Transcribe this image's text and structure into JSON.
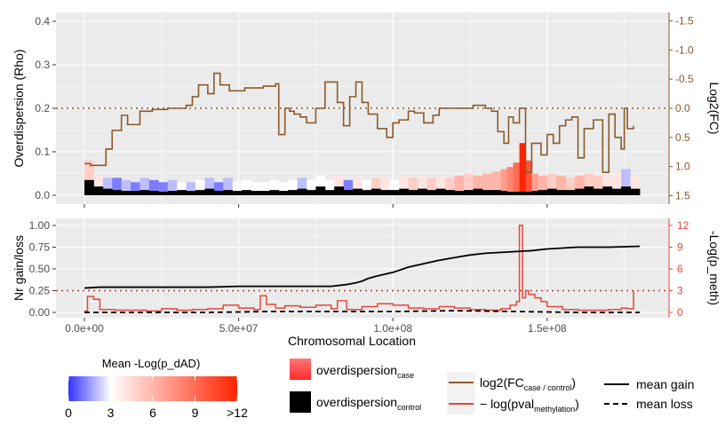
{
  "colors": {
    "panel_bg": "#ebebeb",
    "grid_major": "#ffffff",
    "logfc_line": "#8b5a2b",
    "pval_line": "#e8473a",
    "overdisp_control": "#000000",
    "gain_loss": "#000000",
    "threshold_dotted": "#c0392b",
    "gradient_low": "#3333ff",
    "gradient_mid": "#ffffff",
    "gradient_high": "#ff2200"
  },
  "chart_data": [
    {
      "type": "area",
      "panel": "top",
      "xlabel": "",
      "ylabel": "Overdispersion (Rho)",
      "ylabel_right": "Log2(FC)",
      "xlim": [
        0,
        180000000
      ],
      "ylim": [
        -0.01,
        0.42
      ],
      "ylim_right": [
        -1.6,
        1.6
      ],
      "y_ticks": [
        "0.0",
        "0.1",
        "0.2",
        "0.3",
        "0.4"
      ],
      "y_ticks_right": [
        "-1.5",
        "-1.0",
        "-0.5",
        "0.0",
        "0.5",
        "1.0",
        "1.5"
      ],
      "threshold_right": 0.0,
      "grid": true,
      "series": [
        {
          "name": "log2(FC case/control)",
          "kind": "step-line",
          "axis": "right",
          "x": [
            0,
            2000000,
            7000000,
            9000000,
            12000000,
            14000000,
            18000000,
            22000000,
            27000000,
            33000000,
            35000000,
            37000000,
            40000000,
            42000000,
            44000000,
            47000000,
            52000000,
            58000000,
            62000000,
            63000000,
            65000000,
            66500000,
            68000000,
            70000000,
            72000000,
            75000000,
            78000000,
            82000000,
            84000000,
            86000000,
            88000000,
            90000000,
            92000000,
            95000000,
            98000000,
            100000000,
            102000000,
            105000000,
            107000000,
            110000000,
            113000000,
            115000000,
            118000000,
            122000000,
            126000000,
            130000000,
            132000000,
            134000000,
            136000000,
            137500000,
            139000000,
            141000000,
            143000000,
            145000000,
            148000000,
            150000000,
            152000000,
            154000000,
            156000000,
            158000000,
            160000000,
            162000000,
            165000000,
            168000000,
            170000000,
            172000000,
            174000000,
            175000000,
            176000000,
            178000000
          ],
          "values": [
            0.95,
            0.98,
            0.7,
            0.38,
            0.12,
            0.28,
            0.05,
            0.02,
            0.0,
            -0.05,
            -0.2,
            -0.4,
            -0.25,
            -0.6,
            -0.4,
            -0.3,
            -0.35,
            -0.38,
            -0.42,
            0.45,
            0.0,
            0.05,
            0.1,
            0.15,
            0.25,
            0.0,
            -0.45,
            -0.1,
            0.3,
            -0.2,
            -0.45,
            -0.1,
            0.1,
            0.35,
            0.5,
            0.25,
            0.2,
            0.05,
            0.08,
            0.25,
            0.12,
            0.0,
            0.0,
            0.0,
            -0.05,
            0.0,
            0.05,
            0.4,
            0.6,
            0.15,
            0.25,
            0.0,
            1.1,
            0.6,
            0.8,
            0.45,
            0.6,
            0.3,
            0.2,
            0.15,
            0.85,
            0.35,
            0.2,
            1.1,
            0.1,
            0.5,
            0.7,
            0.0,
            0.35,
            0.3
          ]
        },
        {
          "name": "overdispersion case",
          "kind": "bars-colored",
          "axis": "left",
          "color_by": "Mean -Log(p_dAD)",
          "x": [
            0,
            3000000,
            6000000,
            9000000,
            12000000,
            15000000,
            18000000,
            21000000,
            24000000,
            27000000,
            30000000,
            33000000,
            36000000,
            39000000,
            42000000,
            45000000,
            48000000,
            51000000,
            54000000,
            57000000,
            60000000,
            63000000,
            66000000,
            69000000,
            72000000,
            75000000,
            78000000,
            81000000,
            84000000,
            87000000,
            90000000,
            93000000,
            96000000,
            99000000,
            102000000,
            105000000,
            108000000,
            111000000,
            114000000,
            117000000,
            120000000,
            123000000,
            126000000,
            129000000,
            132000000,
            135000000,
            137000000,
            139000000,
            141000000,
            143000000,
            145000000,
            147000000,
            150000000,
            153000000,
            156000000,
            159000000,
            162000000,
            165000000,
            168000000,
            171000000,
            174000000,
            177000000
          ],
          "values": [
            0.08,
            0.045,
            0.04,
            0.04,
            0.035,
            0.03,
            0.04,
            0.035,
            0.03,
            0.035,
            0.03,
            0.03,
            0.035,
            0.04,
            0.03,
            0.04,
            0.03,
            0.035,
            0.03,
            0.03,
            0.035,
            0.03,
            0.035,
            0.04,
            0.035,
            0.045,
            0.035,
            0.045,
            0.035,
            0.04,
            0.035,
            0.04,
            0.04,
            0.035,
            0.045,
            0.04,
            0.045,
            0.04,
            0.045,
            0.04,
            0.045,
            0.05,
            0.045,
            0.05,
            0.055,
            0.06,
            0.065,
            0.075,
            0.12,
            0.08,
            0.05,
            0.045,
            0.05,
            0.045,
            0.04,
            0.045,
            0.05,
            0.045,
            0.04,
            0.05,
            0.06,
            0.045
          ],
          "intensity": [
            5,
            4,
            2,
            1,
            2,
            1,
            2,
            1,
            1,
            2,
            3,
            2,
            3,
            2,
            1,
            2,
            3,
            3,
            3,
            3,
            3,
            3,
            3,
            2,
            3,
            3,
            3,
            4,
            1,
            4,
            3,
            5,
            4,
            3,
            4,
            5,
            4,
            5,
            4,
            5,
            6,
            5,
            6,
            6,
            6,
            7,
            8,
            9,
            12,
            10,
            7,
            6,
            5,
            6,
            5,
            6,
            5,
            5,
            4,
            4,
            2,
            4
          ]
        },
        {
          "name": "overdispersion control",
          "kind": "bars",
          "axis": "left",
          "x": [
            0,
            3000000,
            6000000,
            9000000,
            12000000,
            15000000,
            18000000,
            21000000,
            24000000,
            27000000,
            30000000,
            33000000,
            36000000,
            39000000,
            42000000,
            45000000,
            48000000,
            51000000,
            54000000,
            57000000,
            60000000,
            63000000,
            66000000,
            69000000,
            72000000,
            75000000,
            78000000,
            81000000,
            84000000,
            87000000,
            90000000,
            93000000,
            96000000,
            99000000,
            102000000,
            105000000,
            108000000,
            111000000,
            114000000,
            117000000,
            120000000,
            123000000,
            126000000,
            129000000,
            132000000,
            135000000,
            137000000,
            139000000,
            141000000,
            143000000,
            145000000,
            147000000,
            150000000,
            153000000,
            156000000,
            159000000,
            162000000,
            165000000,
            168000000,
            171000000,
            174000000,
            177000000
          ],
          "values": [
            0.035,
            0.02,
            0.015,
            0.012,
            0.01,
            0.01,
            0.012,
            0.01,
            0.008,
            0.01,
            0.012,
            0.01,
            0.012,
            0.015,
            0.01,
            0.012,
            0.01,
            0.012,
            0.01,
            0.01,
            0.012,
            0.01,
            0.012,
            0.015,
            0.012,
            0.02,
            0.012,
            0.02,
            0.012,
            0.015,
            0.012,
            0.015,
            0.012,
            0.012,
            0.015,
            0.012,
            0.015,
            0.012,
            0.015,
            0.012,
            0.01,
            0.012,
            0.015,
            0.012,
            0.012,
            0.01,
            0.008,
            0.008,
            0.008,
            0.008,
            0.01,
            0.012,
            0.015,
            0.012,
            0.012,
            0.015,
            0.02,
            0.015,
            0.02,
            0.015,
            0.02,
            0.015
          ]
        }
      ]
    },
    {
      "type": "line",
      "panel": "bottom",
      "xlabel": "Chromosomal Location",
      "ylabel": "Nr gain/loss",
      "ylabel_right": "-Log(p_meth)",
      "xlim": [
        0,
        180000000
      ],
      "ylim": [
        -0.05,
        1.05
      ],
      "ylim_right": [
        -0.6,
        12.6
      ],
      "x_ticks": [
        "0.0e+00",
        "5.0e+07",
        "1.0e+08",
        "1.5e+08"
      ],
      "y_ticks": [
        "0.00",
        "0.25",
        "0.50",
        "0.75",
        "1.00"
      ],
      "y_ticks_right": [
        "0",
        "3",
        "6",
        "9",
        "12"
      ],
      "threshold_right": 3,
      "grid": true,
      "series": [
        {
          "name": "mean gain",
          "kind": "line",
          "axis": "left",
          "x": [
            0,
            5000000,
            10000000,
            20000000,
            30000000,
            40000000,
            50000000,
            60000000,
            70000000,
            80000000,
            85000000,
            88000000,
            90000000,
            92000000,
            95000000,
            100000000,
            105000000,
            110000000,
            115000000,
            120000000,
            125000000,
            130000000,
            135000000,
            140000000,
            145000000,
            150000000,
            155000000,
            160000000,
            170000000,
            180000000
          ],
          "values": [
            0.28,
            0.29,
            0.29,
            0.29,
            0.29,
            0.29,
            0.3,
            0.3,
            0.3,
            0.3,
            0.32,
            0.34,
            0.36,
            0.39,
            0.42,
            0.46,
            0.52,
            0.56,
            0.6,
            0.63,
            0.66,
            0.68,
            0.69,
            0.7,
            0.71,
            0.73,
            0.74,
            0.75,
            0.75,
            0.76
          ]
        },
        {
          "name": "mean loss",
          "kind": "dashed-line",
          "axis": "left",
          "x": [
            0,
            20000000,
            40000000,
            60000000,
            80000000,
            100000000,
            120000000,
            140000000,
            160000000,
            180000000
          ],
          "values": [
            0.0,
            0.0,
            0.0,
            0.01,
            0.01,
            0.01,
            0.02,
            0.01,
            0.0,
            0.0
          ]
        },
        {
          "name": "-log(pval methylation)",
          "kind": "line",
          "axis": "right",
          "x": [
            0,
            1000000,
            3000000,
            5000000,
            10000000,
            20000000,
            25000000,
            30000000,
            35000000,
            40000000,
            45000000,
            50000000,
            55000000,
            57000000,
            59000000,
            62000000,
            65000000,
            70000000,
            75000000,
            80000000,
            82000000,
            85000000,
            90000000,
            95000000,
            100000000,
            105000000,
            110000000,
            115000000,
            120000000,
            125000000,
            130000000,
            135000000,
            138000000,
            140000000,
            141000000,
            142000000,
            143000000,
            144000000,
            146000000,
            148000000,
            150000000,
            155000000,
            160000000,
            165000000,
            170000000,
            174000000,
            176000000,
            178000000
          ],
          "values": [
            0.2,
            2.2,
            1.8,
            0.4,
            0.3,
            0.2,
            0.5,
            0.3,
            0.4,
            0.5,
            1.0,
            0.6,
            0.4,
            2.3,
            1.1,
            0.6,
            0.9,
            0.7,
            1.0,
            0.5,
            1.6,
            0.4,
            0.8,
            1.2,
            1.0,
            0.6,
            0.5,
            0.8,
            0.6,
            0.4,
            0.3,
            0.5,
            1.0,
            1.5,
            12.0,
            2.0,
            3.0,
            2.5,
            2.0,
            1.5,
            0.8,
            0.4,
            0.3,
            0.3,
            0.4,
            0.6,
            0.5,
            3.0
          ]
        }
      ]
    }
  ],
  "legends": {
    "gradient": {
      "title": "Mean -Log(p_dAD)",
      "ticks": [
        "0",
        "3",
        "6",
        "9",
        ">12"
      ]
    },
    "fill": {
      "case_main": "overdispersion",
      "case_sub": "case",
      "control_main": "overdispersion",
      "control_sub": "control"
    },
    "color": {
      "logfc_main": "log2(FC",
      "logfc_sub": "case / control",
      "logfc_close": ")",
      "pval_main": "− log(pval",
      "pval_sub": "methylation",
      "pval_close": ")"
    },
    "linetype": {
      "gain": "mean gain",
      "loss": "mean loss"
    }
  }
}
